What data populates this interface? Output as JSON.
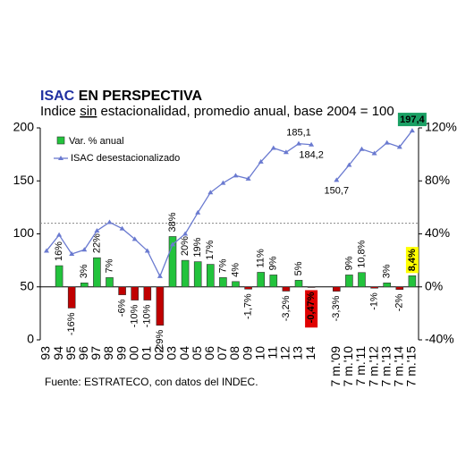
{
  "chart_data": {
    "type": "bar_line",
    "title": [
      "ISAC",
      "EN PERSPECTIVA"
    ],
    "title_colors": [
      "#1f2fa0",
      "#000000"
    ],
    "subtitle": [
      "Indice ",
      "sin",
      " estacionalidad, promedio anual, base 2004 = 100"
    ],
    "source": "Fuente: ESTRATECO, con datos del INDEC.",
    "categories": [
      "93",
      "94",
      "95",
      "96",
      "97",
      "98",
      "99",
      "00",
      "01",
      "02",
      "03",
      "04",
      "05",
      "06",
      "07",
      "08",
      "09",
      "10",
      "11",
      "12",
      "13",
      "14",
      null,
      "7 m.'09",
      "7 m.'10",
      "7 m.'11",
      "7 m.'12",
      "7 m.'13",
      "7 m.'14",
      "7 m.'15"
    ],
    "series": [
      {
        "name": "Var. % anual",
        "axis": "y2",
        "positive_color": "#22c33c",
        "negative_color": "#c00000",
        "values": [
          null,
          16,
          -16,
          3,
          22,
          7,
          -6,
          -10,
          -10,
          -29,
          38,
          20,
          19,
          17,
          7,
          4,
          -1.7,
          11,
          9,
          -3.2,
          5,
          -0.47,
          null,
          -3.3,
          9,
          10.8,
          -1,
          3,
          -2,
          8.4
        ],
        "value_labels": [
          null,
          "16%",
          "-16%",
          "3%",
          "22%",
          "7%",
          "-6%",
          "-10%",
          "-10%",
          "-29%",
          "38%",
          "20%",
          "19%",
          "17%",
          "7%",
          "4%",
          "-1,7%",
          "11%",
          "9%",
          "-3,2%",
          "5%",
          "-0,47%",
          null,
          "-3,3%",
          "9%",
          "10,8%",
          "-1%",
          "3%",
          "-2%",
          "8,4%"
        ],
        "label_box_colors": [
          null,
          null,
          null,
          null,
          null,
          null,
          null,
          null,
          null,
          null,
          null,
          null,
          null,
          null,
          null,
          null,
          null,
          null,
          null,
          null,
          null,
          "#e00000",
          null,
          null,
          null,
          null,
          null,
          null,
          null,
          "#ffff00"
        ]
      },
      {
        "name": "ISAC desestacionalizado",
        "axis": "y",
        "color": "#6a7ad0",
        "values": [
          84,
          99,
          81,
          85,
          103,
          111,
          105,
          95,
          84,
          60,
          90,
          100,
          120,
          139,
          148,
          155,
          152,
          168,
          181,
          177,
          185.1,
          184.2,
          null,
          150.7,
          165,
          180,
          176,
          186,
          182,
          197.4
        ],
        "value_labels": [
          null,
          null,
          null,
          null,
          null,
          null,
          null,
          null,
          null,
          null,
          null,
          null,
          null,
          null,
          null,
          null,
          null,
          null,
          null,
          null,
          "185,1",
          "184,2",
          null,
          "150,7",
          null,
          null,
          null,
          null,
          null,
          "197,4"
        ],
        "label_box_colors": [
          null,
          null,
          null,
          null,
          null,
          null,
          null,
          null,
          null,
          null,
          null,
          null,
          null,
          null,
          null,
          null,
          null,
          null,
          null,
          null,
          null,
          null,
          null,
          null,
          null,
          null,
          null,
          null,
          null,
          "#1aa064"
        ]
      }
    ],
    "ylim": [
      0,
      200
    ],
    "yticks": [
      0,
      50,
      100,
      150,
      200
    ],
    "y2lim": [
      -40,
      120
    ],
    "y2ticks": [
      {
        "value": -40,
        "label": "-40%"
      },
      {
        "value": 0,
        "label": "0%"
      },
      {
        "value": 40,
        "label": "40%"
      },
      {
        "value": 80,
        "label": "80%"
      },
      {
        "value": 120,
        "label": "120%"
      }
    ],
    "reference_line": 110,
    "legend": "upper left"
  }
}
